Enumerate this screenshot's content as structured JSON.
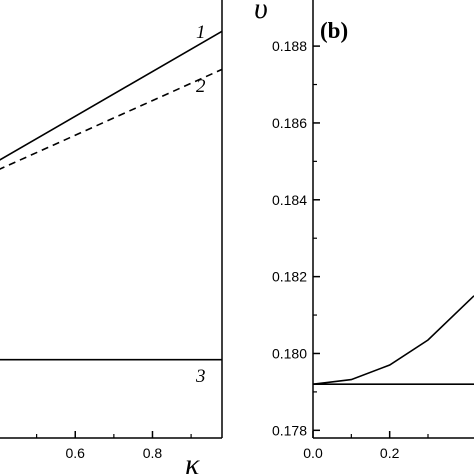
{
  "chart_data": [
    {
      "panel": "a",
      "type": "line",
      "xlabel": "κ",
      "ylabel": "",
      "xlim": [
        0.4,
        0.98
      ],
      "ylim": [
        0.1769,
        0.1892
      ],
      "x_ticks": [
        "0.6",
        "0.8"
      ],
      "y_ticks": [],
      "series": [
        {
          "name": "1",
          "style": "solid",
          "x": [
            0.4,
            0.98
          ],
          "y": [
            0.18468,
            0.18832
          ]
        },
        {
          "name": "2",
          "style": "dashed",
          "x": [
            0.4,
            0.98
          ],
          "y": [
            0.18443,
            0.18725
          ]
        },
        {
          "name": "3",
          "style": "solid",
          "x": [
            0.4,
            0.98
          ],
          "y": [
            0.1791,
            0.1791
          ]
        }
      ],
      "grid": false
    },
    {
      "panel": "b",
      "type": "line",
      "title": "(b)",
      "xlabel": "",
      "ylabel": "υ",
      "xlim": [
        0.0,
        0.42
      ],
      "ylim": [
        0.1778,
        0.1892
      ],
      "x_ticks": [
        "0.0",
        "0.2"
      ],
      "y_ticks": [
        "0.178",
        "0.180",
        "0.182",
        "0.184",
        "0.186",
        "0.188"
      ],
      "series": [
        {
          "style": "solid",
          "x": [
            0.0,
            0.1,
            0.2,
            0.3,
            0.42
          ],
          "y": [
            0.1792,
            0.17932,
            0.1797,
            0.18035,
            0.1815
          ]
        },
        {
          "style": "solid",
          "x": [
            0.0,
            0.42
          ],
          "y": [
            0.1792,
            0.1792
          ]
        }
      ],
      "grid": false
    }
  ]
}
